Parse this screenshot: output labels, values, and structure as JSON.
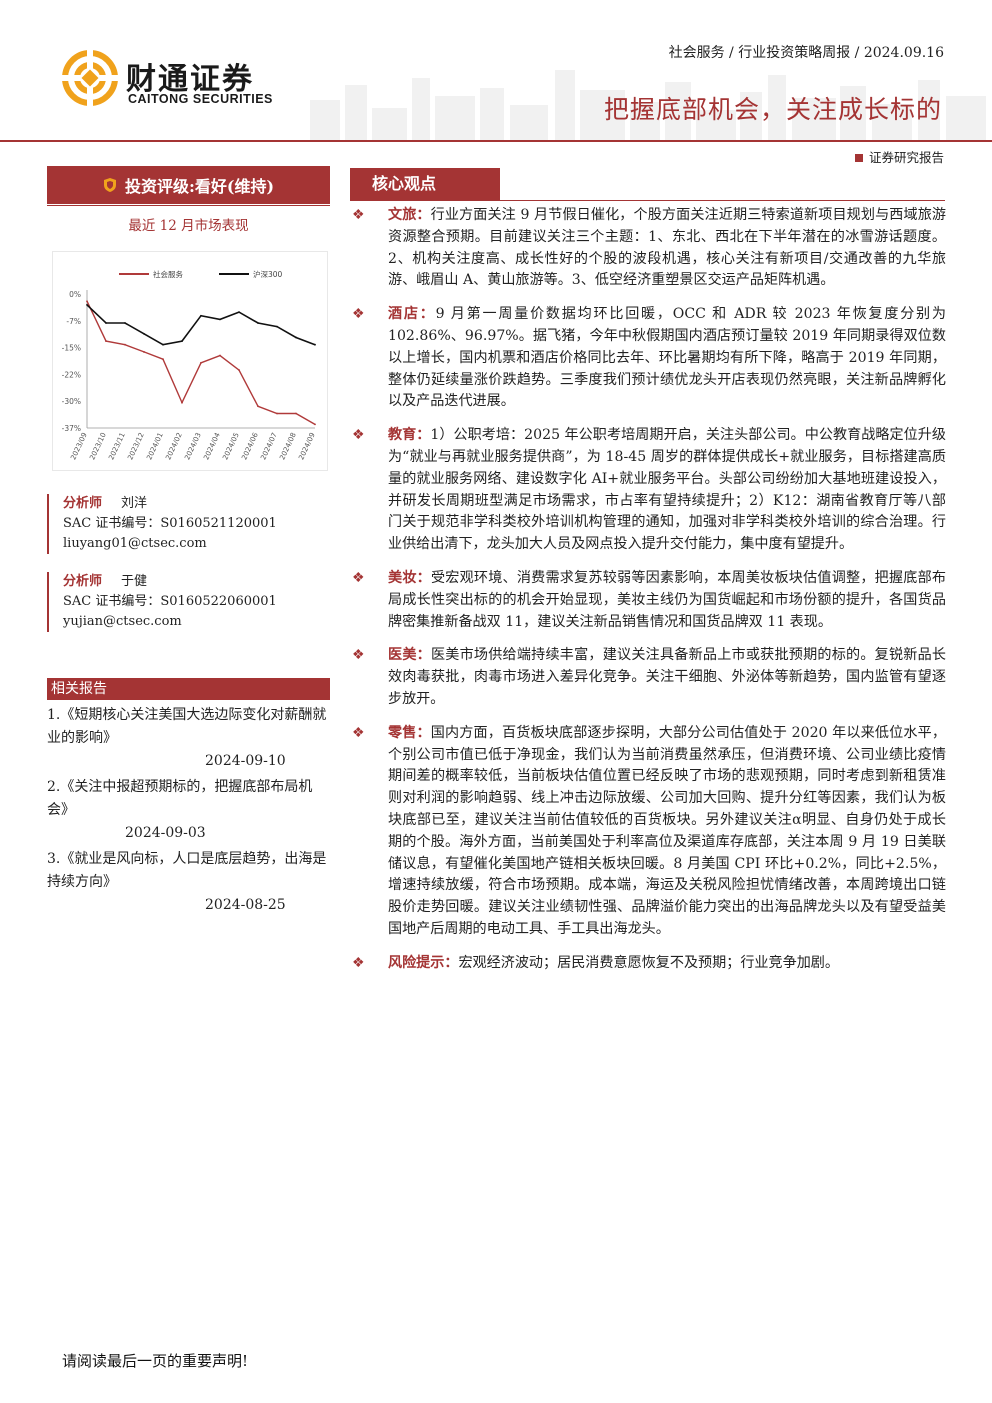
{
  "header": {
    "logo_cn": "财通证券",
    "logo_en": "CAITONG SECURITIES",
    "breadcrumb": "社会服务 / 行业投资策略周报 / 2024.09.16",
    "title": "把握底部机会，关注成长标的",
    "report_type": "证券研究报告"
  },
  "rating": {
    "label": "投资评级:看好(维持)"
  },
  "market": {
    "title": "最近 12 月市场表现"
  },
  "chart_data": {
    "type": "line",
    "x": [
      "2023/09",
      "2023/10",
      "2023/11",
      "2023/12",
      "2024/01",
      "2024/02",
      "2024/03",
      "2024/04",
      "2024/05",
      "2024/06",
      "2024/07",
      "2024/08",
      "2024/09"
    ],
    "y_ticks": [
      "0%",
      "-7%",
      "-15%",
      "-22%",
      "-30%",
      "-37%"
    ],
    "ylim": [
      -37,
      0
    ],
    "legend_position": "top",
    "series": [
      {
        "name": "社会服务",
        "color": "#b03a3a",
        "values": [
          -2,
          -13,
          -14,
          -16,
          -18,
          -30,
          -19,
          -17,
          -21,
          -31,
          -33,
          -33,
          -36
        ]
      },
      {
        "name": "沪深300",
        "color": "#111111",
        "values": [
          -3,
          -8,
          -8,
          -11,
          -14,
          -13,
          -6,
          -7,
          -5,
          -8,
          -9,
          -12,
          -14
        ]
      }
    ]
  },
  "analysts": [
    {
      "role": "分析师",
      "name": "刘洋",
      "sac": "SAC 证书编号：S0160521120001",
      "email": "liuyang01@ctsec.com"
    },
    {
      "role": "分析师",
      "name": "于健",
      "sac": "SAC 证书编号：S0160522060001",
      "email": "yujian@ctsec.com"
    }
  ],
  "related": {
    "title": "相关报告",
    "items": [
      {
        "text": "1.《短期核心关注美国大选边际变化对薪酬就业的影响》",
        "date": "2024-09-10"
      },
      {
        "text": "2.《关注中报超预期标的，把握底部布局机会》",
        "date": "2024-09-03"
      },
      {
        "text": "3.《就业是风向标，人口是底层趋势，出海是持续方向》",
        "date": "2024-08-25"
      }
    ]
  },
  "core": {
    "title": "核心观点",
    "points": [
      {
        "key": "文旅：",
        "text": "行业方面关注 9 月节假日催化，个股方面关注近期三特索道新项目规划与西域旅游资源整合预期。目前建议关注三个主题：1、东北、西北在下半年潜在的冰雪游话题度。2、机构关注度高、成长性好的个股的波段机遇，核心关注有新项目/交通改善的九华旅游、峨眉山 A、黄山旅游等。3、低空经济重塑景区交运产品矩阵机遇。"
      },
      {
        "key": "酒店：",
        "text": "9 月第一周量价数据均环比回暖，OCC 和 ADR 较 2023 年恢复度分别为 102.86%、96.97%。据飞猪，今年中秋假期国内酒店预订量较 2019 年同期录得双位数以上增长，国内机票和酒店价格同比去年、环比暑期均有所下降，略高于 2019 年同期，整体仍延续量涨价跌趋势。三季度我们预计绩优龙头开店表现仍然亮眼，关注新品牌孵化以及产品迭代进展。"
      },
      {
        "key": "教育：",
        "text": "1）公职考培：2025 年公职考培周期开启，关注头部公司。中公教育战略定位升级为“就业与再就业服务提供商”，为 18-45 周岁的群体提供成长+就业服务，目标搭建高质量的就业服务网络、建设数字化 AI+就业服务平台。头部公司纷纷加大基地班建设投入，并研发长周期班型满足市场需求，市占率有望持续提升；2）K12：湖南省教育厅等八部门关于规范非学科类校外培训机构管理的通知，加强对非学科类校外培训的综合治理。行业供给出清下，龙头加大人员及网点投入提升交付能力，集中度有望提升。"
      },
      {
        "key": "美妆：",
        "text": "受宏观环境、消费需求复苏较弱等因素影响，本周美妆板块估值调整，把握底部布局成长性突出标的的机会开始显现，美妆主线仍为国货崛起和市场份额的提升，各国货品牌密集推新备战双 11，建议关注新品销售情况和国货品牌双 11 表现。"
      },
      {
        "key": "医美：",
        "text": "医美市场供给端持续丰富，建议关注具备新品上市或获批预期的标的。复锐新品长效肉毒获批，肉毒市场进入差异化竞争。关注干细胞、外泌体等新趋势，国内监管有望逐步放开。"
      },
      {
        "key": "零售：",
        "text": "国内方面，百货板块底部逐步探明，大部分公司估值处于 2020 年以来低位水平，个别公司市值已低于净现金，我们认为当前消费虽然承压，但消费环境、公司业绩比疫情期间差的概率较低，当前板块估值位置已经反映了市场的悲观预期，同时考虑到新租赁准则对利润的影响趋弱、线上冲击边际放缓、公司加大回购、提升分红等因素，我们认为板块底部已至，建议关注当前估值较低的百货板块。另外建议关注α明显、自身仍处于成长期的个股。海外方面，当前美国处于利率高位及渠道库存底部，关注本周 9 月 19 日美联储议息，有望催化美国地产链相关板块回暖。8 月美国 CPI 环比+0.2%，同比+2.5%，增速持续放缓，符合市场预期。成本端，海运及关税风险担忧情绪改善，本周跨境出口链股价走势回暖。建议关注业绩韧性强、品牌溢价能力突出的出海品牌龙头以及有望受益美国地产后周期的电动工具、手工具出海龙头。"
      },
      {
        "key": "风险提示：",
        "text": "宏观经济波动；居民消费意愿恢复不及预期；行业竞争加剧。"
      }
    ]
  },
  "footer": {
    "note": "请阅读最后一页的重要声明!"
  },
  "colors": {
    "brand": "#a43434",
    "logo_gold": "#f0a21c"
  }
}
